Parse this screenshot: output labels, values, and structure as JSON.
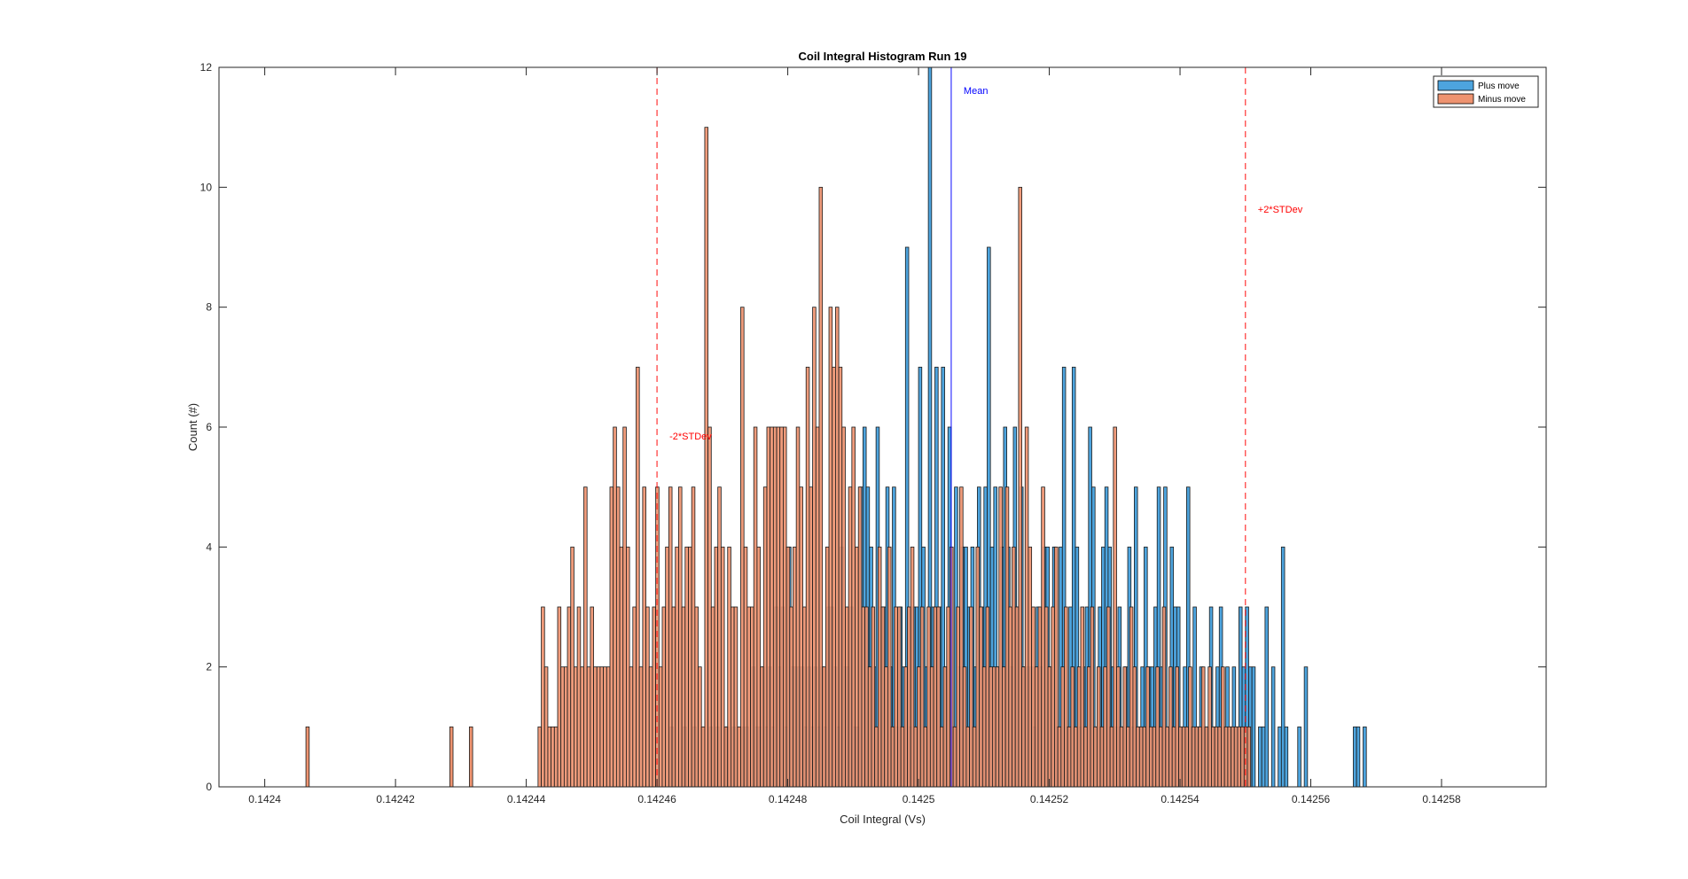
{
  "chart_data": {
    "type": "bar",
    "title": "Coil Integral Histogram Run 19",
    "xlabel": "Coil Integral (Vs)",
    "ylabel": "Count (#)",
    "xlim": [
      0.142393,
      0.142596
    ],
    "ylim": [
      0,
      12
    ],
    "x_ticks": [
      "0.1424",
      "0.14242",
      "0.14244",
      "0.14246",
      "0.14248",
      "0.1425",
      "0.14252",
      "0.14254",
      "0.14256",
      "0.14258"
    ],
    "x_tick_values": [
      0.1424,
      0.14242,
      0.14244,
      0.14246,
      0.14248,
      0.1425,
      0.14252,
      0.14254,
      0.14256,
      0.14258
    ],
    "y_ticks": [
      "0",
      "2",
      "4",
      "6",
      "8",
      "10",
      "12"
    ],
    "y_tick_values": [
      0,
      2,
      4,
      6,
      8,
      10,
      12
    ],
    "bin_width": 5e-07,
    "grid": false,
    "legend_position": "top-right",
    "series": [
      {
        "name": "Plus move",
        "color": "#4DA4DE",
        "bin_start": 0.142462,
        "counts": [
          1,
          0,
          0,
          0,
          1,
          0,
          0,
          1,
          0,
          0,
          0,
          0,
          1,
          0,
          1,
          0,
          0,
          1,
          0,
          1,
          0,
          0,
          1,
          1,
          0,
          2,
          1,
          1,
          2,
          1,
          2,
          1,
          3,
          2,
          3,
          1,
          4,
          2,
          2,
          2,
          2,
          1,
          2,
          1,
          2,
          1,
          2,
          1,
          3,
          3,
          2,
          1,
          4,
          2,
          2,
          3,
          1,
          1,
          5,
          6,
          5,
          4,
          2,
          6,
          3,
          3,
          5,
          2,
          5,
          1,
          3,
          2,
          9,
          1,
          3,
          3,
          7,
          4,
          2,
          12,
          3,
          7,
          3,
          7,
          2,
          6,
          1,
          5,
          2,
          4,
          4,
          3,
          4,
          2,
          5,
          3,
          5,
          9,
          4,
          5,
          2,
          4,
          6,
          4,
          2,
          6,
          3,
          5,
          2,
          2,
          2,
          1,
          3,
          2,
          4,
          4,
          2,
          4,
          1,
          4,
          7,
          1,
          3,
          7,
          4,
          1,
          2,
          3,
          6,
          5,
          1,
          3,
          4,
          5,
          4,
          2,
          1,
          3,
          1,
          2,
          4,
          1,
          5,
          1,
          2,
          4,
          2,
          2,
          3,
          5,
          2,
          5,
          1,
          4,
          3,
          3,
          1,
          2,
          5,
          1,
          3,
          1,
          2,
          1,
          1,
          3,
          1,
          2,
          3,
          1,
          2,
          1,
          2,
          1,
          3,
          2,
          3,
          2,
          2,
          0,
          1,
          1,
          3,
          0,
          2,
          0,
          1,
          4,
          1,
          0,
          0,
          0,
          1,
          0,
          2,
          0,
          0,
          0,
          0,
          0,
          0,
          0,
          0,
          0,
          0,
          0,
          0,
          0,
          0,
          1,
          1,
          0,
          1
        ]
      },
      {
        "name": "Minus move",
        "color": "#EE9370",
        "bin_start": 0.1424418,
        "counts": [
          1,
          3,
          2,
          1,
          1,
          1,
          3,
          2,
          2,
          3,
          4,
          2,
          3,
          2,
          5,
          2,
          3,
          2,
          2,
          2,
          2,
          2,
          5,
          6,
          5,
          4,
          6,
          4,
          2,
          3,
          7,
          2,
          5,
          3,
          2,
          3,
          5,
          2,
          3,
          4,
          5,
          3,
          4,
          5,
          3,
          4,
          4,
          5,
          3,
          2,
          1,
          11,
          6,
          3,
          4,
          5,
          4,
          1,
          4,
          3,
          3,
          1,
          8,
          4,
          3,
          3,
          6,
          4,
          2,
          5,
          6,
          6,
          6,
          6,
          6,
          6,
          4,
          3,
          4,
          6,
          5,
          3,
          7,
          5,
          8,
          6,
          10,
          2,
          4,
          8,
          7,
          8,
          7,
          6,
          3,
          5,
          6,
          4,
          5,
          3,
          3,
          2,
          3,
          1,
          4,
          3,
          2,
          4,
          1,
          3,
          3,
          1,
          2,
          3,
          4,
          1,
          2,
          3,
          1,
          3,
          2,
          3,
          3,
          1,
          2,
          3,
          4,
          1,
          3,
          5,
          2,
          1,
          3,
          1,
          4,
          3,
          2,
          3,
          2,
          2,
          2,
          5,
          2,
          5,
          3,
          4,
          3,
          10,
          2,
          6,
          4,
          3,
          2,
          3,
          5,
          3,
          2,
          3,
          4,
          1,
          2,
          3,
          1,
          2,
          1,
          2,
          3,
          1,
          2,
          3,
          1,
          2,
          1,
          2,
          3,
          1,
          6,
          2,
          1,
          2,
          1,
          3,
          2,
          1,
          1,
          1,
          2,
          1,
          1,
          2,
          1,
          3,
          1,
          2,
          1,
          2,
          1,
          1,
          1,
          2,
          1,
          1,
          1,
          2,
          1,
          2,
          1,
          1,
          1,
          2,
          1,
          1,
          1,
          1,
          1,
          1,
          1,
          1
        ]
      }
    ],
    "outlier_bins": [
      {
        "series": "Minus move",
        "x": 0.1424063,
        "count": 1
      },
      {
        "series": "Minus move",
        "x": 0.1424283,
        "count": 1
      },
      {
        "series": "Minus move",
        "x": 0.1424313,
        "count": 1
      }
    ],
    "reference_lines": [
      {
        "label": "Mean",
        "x": 0.142505,
        "color": "#0000FF",
        "style": "solid"
      },
      {
        "label": "-2*STDev",
        "x": 0.14246,
        "color": "#FF0000",
        "style": "dashed"
      },
      {
        "label": "+2*STDev",
        "x": 0.14255,
        "color": "#FF0000",
        "style": "dashed"
      }
    ]
  }
}
